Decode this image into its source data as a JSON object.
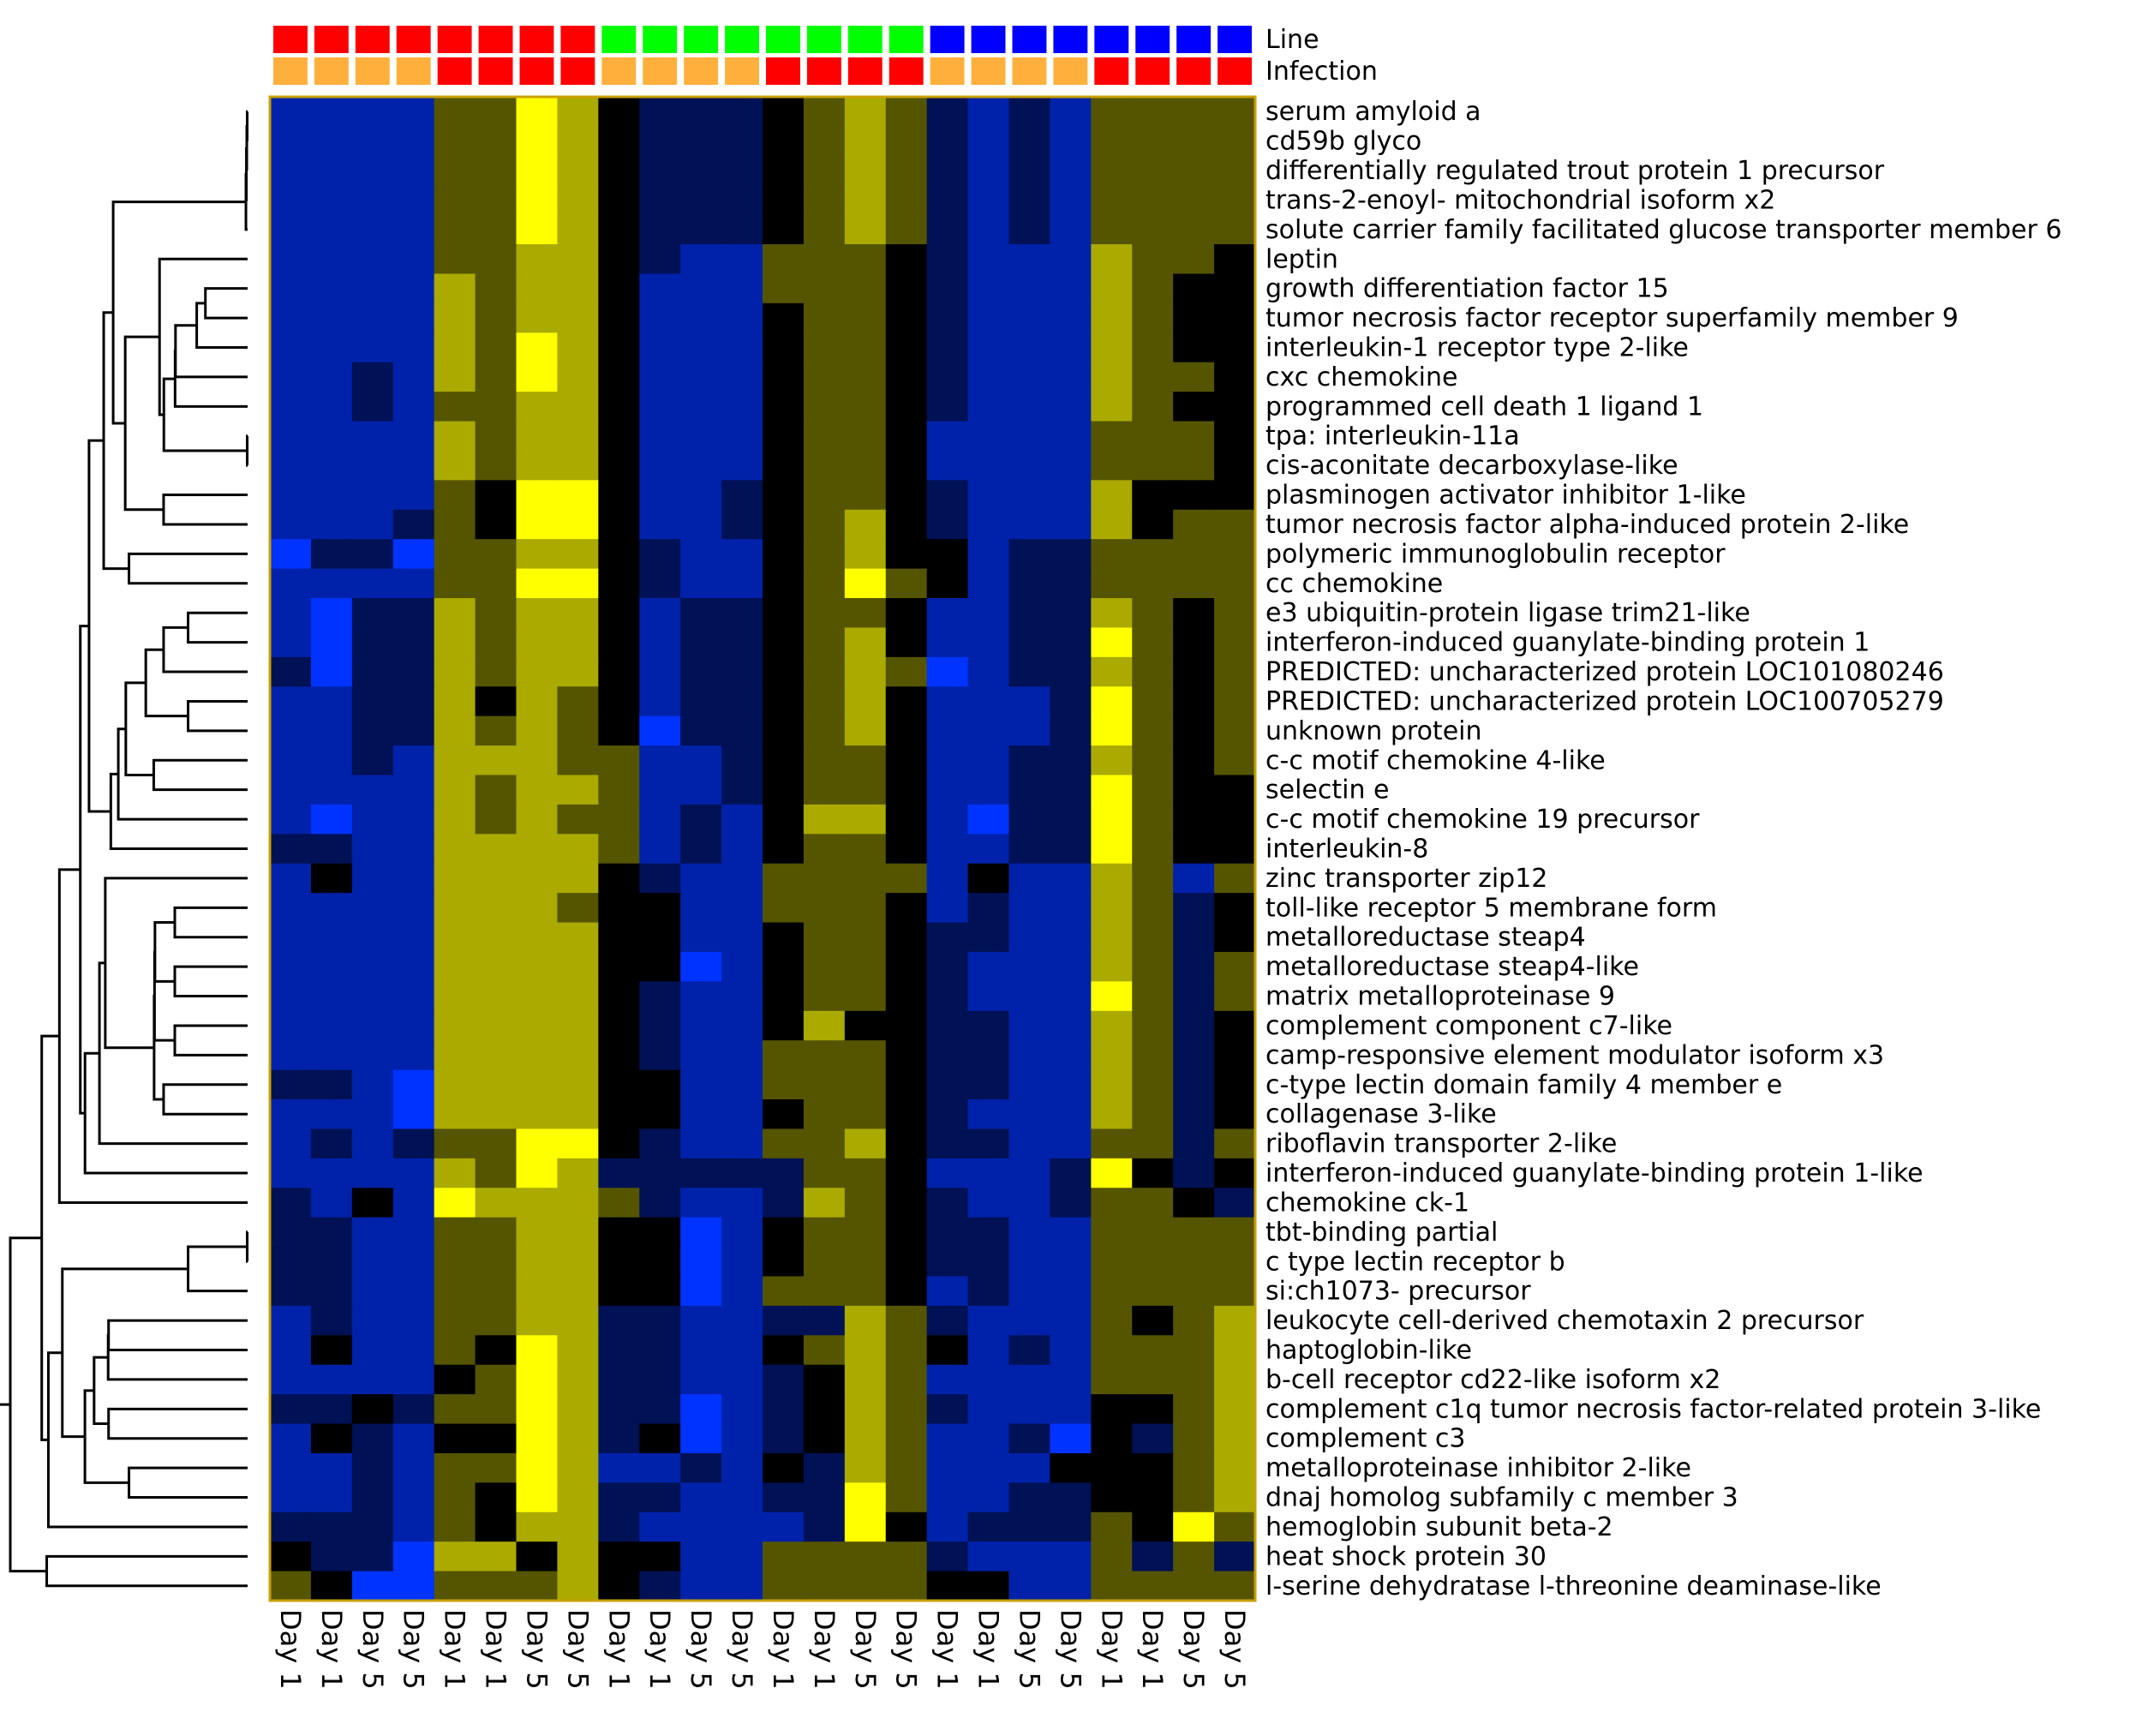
{
  "chart_data": {
    "type": "heatmap",
    "title": "",
    "xlabel": "",
    "ylabel": "",
    "annotation_tracks": [
      {
        "name": "Line",
        "colors": [
          "#ff0000",
          "#ff0000",
          "#ff0000",
          "#ff0000",
          "#ff0000",
          "#ff0000",
          "#ff0000",
          "#ff0000",
          "#00ff00",
          "#00ff00",
          "#00ff00",
          "#00ff00",
          "#00ff00",
          "#00ff00",
          "#00ff00",
          "#00ff00",
          "#0000ff",
          "#0000ff",
          "#0000ff",
          "#0000ff",
          "#0000ff",
          "#0000ff",
          "#0000ff",
          "#0000ff"
        ]
      },
      {
        "name": "Infection",
        "colors": [
          "#ffb03c",
          "#ffb03c",
          "#ffb03c",
          "#ffb03c",
          "#ff0000",
          "#ff0000",
          "#ff0000",
          "#ff0000",
          "#ffb03c",
          "#ffb03c",
          "#ffb03c",
          "#ffb03c",
          "#ff0000",
          "#ff0000",
          "#ff0000",
          "#ff0000",
          "#ffb03c",
          "#ffb03c",
          "#ffb03c",
          "#ffb03c",
          "#ff0000",
          "#ff0000",
          "#ff0000",
          "#ff0000"
        ]
      }
    ],
    "columns": [
      "Day 1",
      "Day 1",
      "Day 5",
      "Day 5",
      "Day 1",
      "Day 1",
      "Day 5",
      "Day 5",
      "Day 1",
      "Day 1",
      "Day 5",
      "Day 5",
      "Day 1",
      "Day 1",
      "Day 5",
      "Day 5",
      "Day 1",
      "Day 1",
      "Day 5",
      "Day 5",
      "Day 1",
      "Day 1",
      "Day 5",
      "Day 5"
    ],
    "rows": [
      "serum amyloid a",
      "cd59b glyco",
      "differentially regulated trout protein 1 precursor",
      "trans-2-enoyl- mitochondrial isoform x2",
      "solute carrier family facilitated glucose transporter member 6",
      "leptin",
      "growth differentiation factor 15",
      "tumor necrosis factor receptor superfamily member 9",
      "interleukin-1 receptor type 2-like",
      "cxc chemokine",
      "programmed cell death 1 ligand 1",
      "tpa: interleukin-11a",
      "cis-aconitate decarboxylase-like",
      "plasminogen activator inhibitor 1-like",
      "tumor necrosis factor alpha-induced protein 2-like",
      "polymeric immunoglobulin receptor",
      "cc chemokine",
      "e3 ubiquitin-protein ligase trim21-like",
      "interferon-induced guanylate-binding protein 1",
      "PREDICTED: uncharacterized protein LOC101080246",
      "PREDICTED: uncharacterized protein LOC100705279",
      "unknown protein",
      "c-c motif chemokine 4-like",
      "selectin e",
      "c-c motif chemokine 19 precursor",
      "interleukin-8",
      "zinc transporter zip12",
      "toll-like receptor 5 membrane form",
      "metalloreductase steap4",
      "metalloreductase steap4-like",
      "matrix metalloproteinase 9",
      "complement component c7-like",
      "camp-responsive element modulator isoform x3",
      "c-type lectin domain family 4 member e",
      "collagenase 3-like",
      "riboflavin transporter 2-like",
      "interferon-induced guanylate-binding protein 1-like",
      "chemokine ck-1",
      "tbt-binding partial",
      "c type lectin receptor b",
      "si:ch1073- precursor",
      "leukocyte cell-derived chemotaxin 2 precursor",
      "haptoglobin-like",
      "b-cell receptor cd22-like isoform x2",
      "complement c1q tumor necrosis factor-related protein 3-like",
      "complement c3",
      "metalloproteinase inhibitor 2-like",
      "dnaj homolog subfamily c member 3",
      "hemoglobin subunit beta-2",
      "heat shock protein 30",
      "l-serine dehydratase l-threonine deaminase-like"
    ],
    "value_scale": {
      "min": -3,
      "max": 3,
      "low_color": "#0033ff",
      "mid_color": "#000000",
      "high_color": "#ffff00"
    },
    "values": [
      [
        -2,
        -2,
        -2,
        -2,
        1,
        1,
        3,
        2,
        0,
        -1,
        -1,
        -1,
        0,
        1,
        2,
        1,
        -1,
        -2,
        -1,
        -2,
        1,
        1,
        1,
        1
      ],
      [
        -2,
        -2,
        -2,
        -2,
        1,
        1,
        3,
        2,
        0,
        -1,
        -1,
        -1,
        0,
        1,
        2,
        1,
        -1,
        -2,
        -1,
        -2,
        1,
        1,
        1,
        1
      ],
      [
        -2,
        -2,
        -2,
        -2,
        1,
        1,
        3,
        2,
        0,
        -1,
        -1,
        -1,
        0,
        1,
        2,
        1,
        -1,
        -2,
        -1,
        -2,
        1,
        1,
        1,
        1
      ],
      [
        -2,
        -2,
        -2,
        -2,
        1,
        1,
        3,
        2,
        0,
        -1,
        -1,
        -1,
        0,
        1,
        2,
        1,
        -1,
        -2,
        -1,
        -2,
        1,
        1,
        1,
        1
      ],
      [
        -2,
        -2,
        -2,
        -2,
        1,
        1,
        3,
        2,
        0,
        -1,
        -1,
        -1,
        0,
        1,
        2,
        1,
        -1,
        -2,
        -1,
        -2,
        1,
        1,
        1,
        1
      ],
      [
        -2,
        -2,
        -2,
        -2,
        1,
        1,
        2,
        2,
        0,
        -1,
        -2,
        -2,
        1,
        1,
        1,
        0,
        -1,
        -2,
        -2,
        -2,
        2,
        1,
        1,
        0
      ],
      [
        -2,
        -2,
        -2,
        -2,
        2,
        1,
        2,
        2,
        0,
        -2,
        -2,
        -2,
        1,
        1,
        1,
        0,
        -1,
        -2,
        -2,
        -2,
        2,
        1,
        0,
        0
      ],
      [
        -2,
        -2,
        -2,
        -2,
        2,
        1,
        2,
        2,
        0,
        -2,
        -2,
        -2,
        0,
        1,
        1,
        0,
        -1,
        -2,
        -2,
        -2,
        2,
        1,
        0,
        0
      ],
      [
        -2,
        -2,
        -2,
        -2,
        2,
        1,
        3,
        2,
        0,
        -2,
        -2,
        -2,
        0,
        1,
        1,
        0,
        -1,
        -2,
        -2,
        -2,
        2,
        1,
        0,
        0
      ],
      [
        -2,
        -2,
        -1,
        -2,
        2,
        1,
        3,
        2,
        0,
        -2,
        -2,
        -2,
        0,
        1,
        1,
        0,
        -1,
        -2,
        -2,
        -2,
        2,
        1,
        1,
        0
      ],
      [
        -2,
        -2,
        -1,
        -2,
        1,
        1,
        2,
        2,
        0,
        -2,
        -2,
        -2,
        0,
        1,
        1,
        0,
        -1,
        -2,
        -2,
        -2,
        2,
        1,
        0,
        0
      ],
      [
        -2,
        -2,
        -2,
        -2,
        2,
        1,
        2,
        2,
        0,
        -2,
        -2,
        -2,
        0,
        1,
        1,
        0,
        -2,
        -2,
        -2,
        -2,
        1,
        1,
        1,
        0
      ],
      [
        -2,
        -2,
        -2,
        -2,
        2,
        1,
        2,
        2,
        0,
        -2,
        -2,
        -2,
        0,
        1,
        1,
        0,
        -2,
        -2,
        -2,
        -2,
        1,
        1,
        1,
        0
      ],
      [
        -2,
        -2,
        -2,
        -2,
        1,
        0,
        3,
        3,
        0,
        -2,
        -2,
        -1,
        0,
        1,
        1,
        0,
        -1,
        -2,
        -2,
        -2,
        2,
        0,
        0,
        0
      ],
      [
        -2,
        -2,
        -2,
        -1,
        1,
        0,
        3,
        3,
        0,
        -2,
        -2,
        -1,
        0,
        1,
        2,
        0,
        -1,
        -2,
        -2,
        -2,
        2,
        0,
        1,
        1
      ],
      [
        -3,
        -1,
        -1,
        -3,
        1,
        1,
        2,
        2,
        0,
        -1,
        -2,
        -2,
        0,
        1,
        2,
        0,
        0,
        -2,
        -1,
        -1,
        1,
        1,
        1,
        1
      ],
      [
        -2,
        -2,
        -2,
        -2,
        1,
        1,
        3,
        3,
        0,
        -1,
        -2,
        -2,
        0,
        1,
        3,
        1,
        0,
        -2,
        -1,
        -1,
        1,
        1,
        1,
        1
      ],
      [
        -2,
        -3,
        -1,
        -1,
        2,
        1,
        2,
        2,
        0,
        -2,
        -1,
        -1,
        0,
        1,
        1,
        0,
        -2,
        -2,
        -1,
        -1,
        2,
        1,
        0,
        1
      ],
      [
        -2,
        -3,
        -1,
        -1,
        2,
        1,
        2,
        2,
        0,
        -2,
        -1,
        -1,
        0,
        1,
        2,
        0,
        -2,
        -2,
        -1,
        -1,
        3,
        1,
        0,
        1
      ],
      [
        -1,
        -3,
        -1,
        -1,
        2,
        1,
        2,
        2,
        0,
        -2,
        -1,
        -1,
        0,
        1,
        2,
        1,
        -3,
        -2,
        -1,
        -1,
        2,
        1,
        0,
        1
      ],
      [
        -2,
        -2,
        -1,
        -1,
        2,
        0,
        2,
        1,
        0,
        -2,
        -1,
        -1,
        0,
        1,
        2,
        0,
        -2,
        -2,
        -2,
        -1,
        3,
        1,
        0,
        1
      ],
      [
        -2,
        -2,
        -1,
        -1,
        2,
        1,
        2,
        1,
        0,
        -3,
        -1,
        -1,
        0,
        1,
        2,
        0,
        -2,
        -2,
        -2,
        -1,
        3,
        1,
        0,
        1
      ],
      [
        -2,
        -2,
        -1,
        -2,
        2,
        2,
        2,
        1,
        1,
        -2,
        -2,
        -1,
        0,
        1,
        1,
        0,
        -2,
        -2,
        -1,
        -1,
        2,
        1,
        0,
        1
      ],
      [
        -2,
        -2,
        -2,
        -2,
        2,
        1,
        2,
        2,
        1,
        -2,
        -2,
        -1,
        0,
        1,
        1,
        0,
        -2,
        -2,
        -1,
        -1,
        3,
        1,
        0,
        0
      ],
      [
        -2,
        -3,
        -2,
        -2,
        2,
        1,
        2,
        1,
        1,
        -2,
        -1,
        -2,
        0,
        2,
        2,
        0,
        -2,
        -3,
        -1,
        -1,
        3,
        1,
        0,
        0
      ],
      [
        -1,
        -1,
        -2,
        -2,
        2,
        2,
        2,
        2,
        1,
        -2,
        -1,
        -2,
        0,
        1,
        1,
        0,
        -2,
        -2,
        -1,
        -1,
        3,
        1,
        0,
        0
      ],
      [
        -2,
        0,
        -2,
        -2,
        2,
        2,
        2,
        2,
        0,
        -1,
        -2,
        -2,
        1,
        1,
        1,
        1,
        -2,
        0,
        -2,
        -2,
        2,
        1,
        -2,
        1
      ],
      [
        -2,
        -2,
        -2,
        -2,
        2,
        2,
        2,
        1,
        0,
        0,
        -2,
        -2,
        1,
        1,
        1,
        0,
        -2,
        -1,
        -2,
        -2,
        2,
        1,
        -1,
        0
      ],
      [
        -2,
        -2,
        -2,
        -2,
        2,
        2,
        2,
        2,
        0,
        0,
        -2,
        -2,
        0,
        1,
        1,
        0,
        -1,
        -1,
        -2,
        -2,
        2,
        1,
        -1,
        0
      ],
      [
        -2,
        -2,
        -2,
        -2,
        2,
        2,
        2,
        2,
        0,
        0,
        -3,
        -2,
        0,
        1,
        1,
        0,
        -1,
        -2,
        -2,
        -2,
        2,
        1,
        -1,
        1
      ],
      [
        -2,
        -2,
        -2,
        -2,
        2,
        2,
        2,
        2,
        0,
        -1,
        -2,
        -2,
        0,
        1,
        1,
        0,
        -1,
        -2,
        -2,
        -2,
        3,
        1,
        -1,
        1
      ],
      [
        -2,
        -2,
        -2,
        -2,
        2,
        2,
        2,
        2,
        0,
        -1,
        -2,
        -2,
        0,
        2,
        0,
        0,
        -1,
        -1,
        -2,
        -2,
        2,
        1,
        -1,
        0
      ],
      [
        -2,
        -2,
        -2,
        -2,
        2,
        2,
        2,
        2,
        0,
        -1,
        -2,
        -2,
        1,
        1,
        1,
        0,
        -1,
        -1,
        -2,
        -2,
        2,
        1,
        -1,
        0
      ],
      [
        -1,
        -1,
        -2,
        -3,
        2,
        2,
        2,
        2,
        0,
        0,
        -2,
        -2,
        1,
        1,
        1,
        0,
        -1,
        -1,
        -2,
        -2,
        2,
        1,
        -1,
        0
      ],
      [
        -2,
        -2,
        -2,
        -3,
        2,
        2,
        2,
        2,
        0,
        0,
        -2,
        -2,
        0,
        1,
        1,
        0,
        -1,
        -2,
        -2,
        -2,
        2,
        1,
        -1,
        0
      ],
      [
        -2,
        -1,
        -2,
        -1,
        1,
        1,
        3,
        3,
        0,
        -1,
        -2,
        -2,
        1,
        1,
        2,
        0,
        -1,
        -1,
        -2,
        -2,
        1,
        1,
        -1,
        1
      ],
      [
        -2,
        -2,
        -2,
        -2,
        2,
        1,
        3,
        2,
        -1,
        -1,
        -1,
        -1,
        -1,
        1,
        1,
        0,
        -2,
        -2,
        -2,
        -1,
        3,
        0,
        -1,
        0
      ],
      [
        -1,
        -2,
        0,
        -2,
        3,
        2,
        2,
        2,
        1,
        -1,
        -2,
        -2,
        -1,
        2,
        1,
        0,
        -1,
        -2,
        -2,
        -1,
        1,
        1,
        0,
        -1
      ],
      [
        -1,
        -1,
        -2,
        -2,
        1,
        1,
        2,
        2,
        0,
        0,
        -3,
        -2,
        0,
        1,
        1,
        0,
        -1,
        -1,
        -2,
        -2,
        1,
        1,
        1,
        1
      ],
      [
        -1,
        -1,
        -2,
        -2,
        1,
        1,
        2,
        2,
        0,
        0,
        -3,
        -2,
        0,
        1,
        1,
        0,
        -1,
        -1,
        -2,
        -2,
        1,
        1,
        1,
        1
      ],
      [
        -1,
        -1,
        -2,
        -2,
        1,
        1,
        2,
        2,
        0,
        0,
        -3,
        -2,
        1,
        1,
        1,
        0,
        -2,
        -1,
        -2,
        -2,
        1,
        1,
        1,
        1
      ],
      [
        -2,
        -1,
        -2,
        -2,
        1,
        1,
        2,
        2,
        -1,
        -1,
        -2,
        -2,
        -1,
        -1,
        2,
        1,
        -1,
        -2,
        -2,
        -2,
        1,
        0,
        1,
        2
      ],
      [
        -2,
        0,
        -2,
        -2,
        1,
        0,
        3,
        2,
        -1,
        -1,
        -2,
        -2,
        0,
        1,
        2,
        1,
        0,
        -2,
        -1,
        -2,
        1,
        1,
        1,
        2
      ],
      [
        -2,
        -2,
        -2,
        -2,
        0,
        1,
        3,
        2,
        -1,
        -1,
        -2,
        -2,
        -1,
        0,
        2,
        1,
        -2,
        -2,
        -2,
        -2,
        1,
        1,
        1,
        2
      ],
      [
        -1,
        -1,
        0,
        -1,
        1,
        1,
        3,
        2,
        -1,
        -1,
        -3,
        -2,
        -1,
        0,
        2,
        1,
        -1,
        -2,
        -2,
        -2,
        0,
        0,
        1,
        2
      ],
      [
        -2,
        0,
        -1,
        -2,
        0,
        0,
        3,
        2,
        -1,
        0,
        -3,
        -2,
        -1,
        0,
        2,
        1,
        -2,
        -2,
        -1,
        -3,
        0,
        -1,
        1,
        2
      ],
      [
        -2,
        -2,
        -1,
        -2,
        1,
        1,
        3,
        2,
        -2,
        -2,
        -1,
        -2,
        0,
        -1,
        2,
        1,
        -2,
        -2,
        -2,
        0,
        0,
        0,
        1,
        2
      ],
      [
        -2,
        -2,
        -1,
        -2,
        1,
        0,
        3,
        2,
        -1,
        -1,
        -2,
        -2,
        -1,
        -1,
        3,
        1,
        -2,
        -2,
        -1,
        -1,
        0,
        0,
        1,
        2
      ],
      [
        -1,
        -1,
        -1,
        -2,
        1,
        0,
        2,
        2,
        -1,
        -2,
        -2,
        -2,
        -2,
        -1,
        3,
        0,
        -2,
        -1,
        -1,
        -1,
        1,
        0,
        3,
        1
      ],
      [
        0,
        -1,
        -1,
        -3,
        2,
        2,
        0,
        2,
        0,
        0,
        -2,
        -2,
        1,
        1,
        1,
        1,
        -1,
        -2,
        -2,
        -2,
        1,
        -1,
        1,
        -1
      ],
      [
        1,
        0,
        -3,
        -3,
        1,
        1,
        1,
        2,
        0,
        -1,
        -2,
        -2,
        1,
        1,
        1,
        1,
        0,
        0,
        -2,
        -2,
        1,
        1,
        1,
        1
      ]
    ],
    "dendrogram_leaf_order": [
      0,
      1,
      2,
      3,
      4,
      5,
      6,
      7,
      8,
      9,
      10,
      11,
      12,
      13,
      14,
      15,
      16,
      17,
      18,
      19,
      20,
      21,
      22,
      23,
      24,
      25,
      26,
      27,
      28,
      29,
      30,
      31,
      32,
      33,
      34,
      35,
      36,
      37,
      38,
      39,
      40,
      41,
      42,
      43,
      44,
      45,
      46,
      47,
      48,
      49,
      50
    ],
    "legend": "top-right"
  }
}
